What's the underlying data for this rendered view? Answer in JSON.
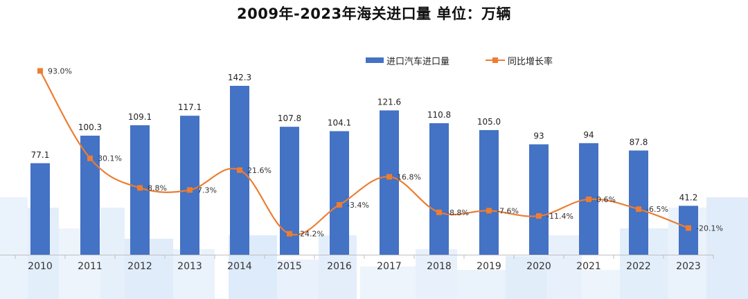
{
  "title": "2009年-2023年海关进口量  单位：万辆",
  "colors": {
    "bar": "#4472C4",
    "line": "#ED7D31",
    "axis": "#BFBFBF",
    "text": "#404040",
    "decor": "#DDEBFA"
  },
  "chart_data": {
    "type": "bar",
    "title": "2009年-2023年海关进口量  单位：万辆",
    "xlabel": "",
    "ylabel": "",
    "categories": [
      "2010",
      "2011",
      "2012",
      "2013",
      "2014",
      "2015",
      "2016",
      "2017",
      "2018",
      "2019",
      "2020",
      "2021",
      "2022",
      "2023"
    ],
    "series": [
      {
        "name": "进口汽车进口量",
        "type": "bar",
        "values": [
          77.1,
          100.3,
          109.1,
          117.1,
          142.3,
          107.8,
          104.1,
          121.6,
          110.8,
          105.0,
          93,
          94,
          87.8,
          41.2
        ],
        "labels": [
          "77.1",
          "100.3",
          "109.1",
          "117.1",
          "142.3",
          "107.8",
          "104.1",
          "121.6",
          "110.8",
          "105.0",
          "93",
          "94",
          "87.8",
          "41.2"
        ]
      },
      {
        "name": "同比增长率",
        "type": "line",
        "values": [
          93.0,
          30.1,
          8.8,
          7.3,
          21.6,
          -24.2,
          -3.4,
          16.8,
          -8.8,
          -7.6,
          -11.4,
          0.6,
          -6.5,
          -20.1
        ],
        "labels": [
          "93.0%",
          "30.1%",
          "8.8%",
          "7.3%",
          "21.6%",
          "-24.2%",
          "-3.4%",
          "16.8%",
          "-8.8%",
          "-7.6%",
          "-11.4%",
          "0.6%",
          "-6.5%",
          "-20.1%"
        ]
      }
    ],
    "ylim_bar": [
      0,
      160
    ],
    "ylim_line": [
      -30,
      100
    ],
    "legend_position": "top-right",
    "grid": false
  }
}
